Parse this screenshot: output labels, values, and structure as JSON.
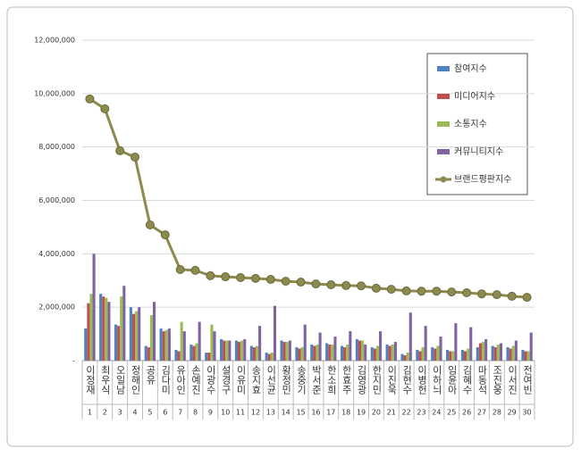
{
  "chart_data": {
    "type": "combo",
    "categories": [
      "이정재",
      "최우식",
      "오일남",
      "정해인",
      "공유",
      "김다미",
      "유아인",
      "손예진",
      "이광수",
      "설경구",
      "이유미",
      "송지효",
      "이선균",
      "황정민",
      "송중기",
      "박서준",
      "한소희",
      "한효주",
      "김영광",
      "한지민",
      "이진욱",
      "김현수",
      "이병헌",
      "이하늬",
      "임윤아",
      "김혜수",
      "마동석",
      "조진웅",
      "이서진",
      "전여빈"
    ],
    "rank_labels": [
      1,
      2,
      3,
      4,
      5,
      6,
      7,
      8,
      9,
      10,
      11,
      12,
      13,
      14,
      15,
      16,
      17,
      18,
      19,
      20,
      21,
      22,
      23,
      24,
      25,
      26,
      27,
      28,
      29,
      30
    ],
    "series": [
      {
        "name": "참여지수",
        "type": "bar",
        "color": "#4f81bd",
        "values": [
          1200000,
          2500000,
          1350000,
          2000000,
          550000,
          1200000,
          400000,
          600000,
          300000,
          800000,
          750000,
          550000,
          300000,
          750000,
          500000,
          600000,
          650000,
          550000,
          800000,
          500000,
          600000,
          250000,
          400000,
          500000,
          400000,
          400000,
          500000,
          550000,
          500000,
          400000
        ]
      },
      {
        "name": "미디어지수",
        "type": "bar",
        "color": "#c0504d",
        "values": [
          2150000,
          2400000,
          1300000,
          1750000,
          500000,
          1100000,
          350000,
          550000,
          300000,
          750000,
          700000,
          500000,
          250000,
          700000,
          450000,
          550000,
          600000,
          500000,
          750000,
          450000,
          550000,
          200000,
          350000,
          450000,
          350000,
          350000,
          650000,
          500000,
          450000,
          350000
        ]
      },
      {
        "name": "소통지수",
        "type": "bar",
        "color": "#9bbb59",
        "values": [
          2500000,
          2350000,
          2400000,
          1850000,
          1700000,
          1150000,
          1450000,
          650000,
          1350000,
          750000,
          750000,
          550000,
          300000,
          700000,
          500000,
          600000,
          600000,
          600000,
          750000,
          550000,
          600000,
          300000,
          500000,
          550000,
          350000,
          450000,
          700000,
          600000,
          550000,
          350000
        ]
      },
      {
        "name": "커뮤니티지수",
        "type": "bar",
        "color": "#8064a2",
        "values": [
          4000000,
          2200000,
          2800000,
          2000000,
          2200000,
          1200000,
          1100000,
          1450000,
          1100000,
          750000,
          800000,
          1300000,
          2050000,
          750000,
          1350000,
          1050000,
          900000,
          1100000,
          600000,
          1100000,
          700000,
          1800000,
          1300000,
          900000,
          1400000,
          1250000,
          800000,
          650000,
          750000,
          1050000
        ]
      },
      {
        "name": "브랜드평판지수",
        "type": "line",
        "color": "#8c8a4e",
        "values": [
          9800000,
          9430000,
          7860000,
          7620000,
          5080000,
          4710000,
          3410000,
          3380000,
          3180000,
          3140000,
          3110000,
          3080000,
          3040000,
          2970000,
          2940000,
          2870000,
          2840000,
          2810000,
          2800000,
          2710000,
          2670000,
          2610000,
          2600000,
          2600000,
          2570000,
          2540000,
          2500000,
          2470000,
          2410000,
          2370000
        ]
      }
    ],
    "ylim": [
      0,
      12000000
    ],
    "yticks": [
      {
        "value": 0,
        "label": "-"
      },
      {
        "value": 2000000,
        "label": "2,000,000"
      },
      {
        "value": 4000000,
        "label": "4,000,000"
      },
      {
        "value": 6000000,
        "label": "6,000,000"
      },
      {
        "value": 8000000,
        "label": "8,000,000"
      },
      {
        "value": 10000000,
        "label": "10,000,000"
      },
      {
        "value": 12000000,
        "label": "12,000,000"
      }
    ],
    "grid": true,
    "legend": "upper-right"
  }
}
